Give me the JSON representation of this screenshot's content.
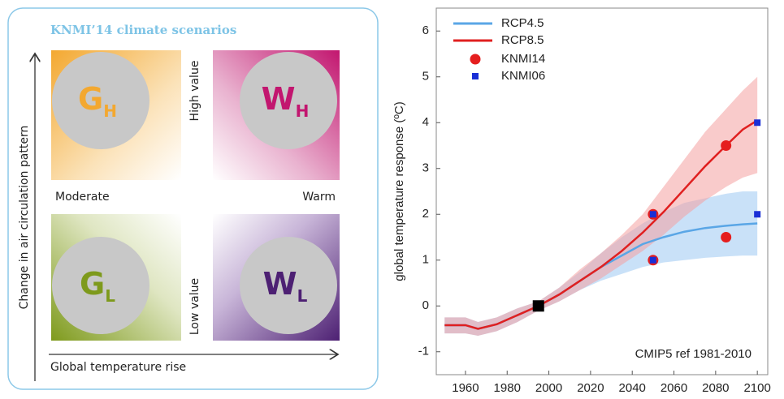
{
  "diagram": {
    "title": "KNMI’14 climate scenarios",
    "y_axis_label": "Change in air circulation pattern",
    "x_axis_label": "Global temperature rise",
    "labels": {
      "high": "High value",
      "low": "Low value",
      "moderate": "Moderate",
      "warm": "Warm"
    },
    "scenarios": [
      {
        "letter": "G",
        "subscript": "H"
      },
      {
        "letter": "W",
        "subscript": "H"
      },
      {
        "letter": "G",
        "subscript": "L"
      },
      {
        "letter": "W",
        "subscript": "L"
      }
    ]
  },
  "chart_data": {
    "type": "line",
    "y_label": "global temperature response (ºC)",
    "annotation": "CMIP5 ref 1981-2010",
    "xlim": [
      1946,
      2105
    ],
    "xticks": [
      1960,
      1980,
      2000,
      2020,
      2040,
      2060,
      2080,
      2100
    ],
    "ylim": [
      -1.5,
      6.5
    ],
    "yticks": [
      -1,
      0,
      1,
      2,
      3,
      4,
      5,
      6
    ],
    "x": [
      1950,
      1960,
      1966,
      1975,
      1985,
      1995,
      2005,
      2015,
      2025,
      2035,
      2045,
      2055,
      2065,
      2075,
      2085,
      2093,
      2100
    ],
    "series": [
      {
        "name": "RCP4.5",
        "color": "#5aa6e6",
        "band_color": "#9cc8f2",
        "values": [
          -0.42,
          -0.42,
          -0.5,
          -0.4,
          -0.2,
          0,
          0.25,
          0.55,
          0.85,
          1.1,
          1.35,
          1.5,
          1.62,
          1.7,
          1.75,
          1.78,
          1.8
        ],
        "lower": [
          -0.6,
          -0.6,
          -0.65,
          -0.55,
          -0.35,
          -0.1,
          0.1,
          0.35,
          0.55,
          0.7,
          0.85,
          0.95,
          1.0,
          1.05,
          1.08,
          1.1,
          1.1
        ],
        "upper": [
          -0.25,
          -0.25,
          -0.35,
          -0.25,
          -0.05,
          0.1,
          0.4,
          0.75,
          1.15,
          1.5,
          1.8,
          2.05,
          2.25,
          2.35,
          2.45,
          2.5,
          2.5
        ]
      },
      {
        "name": "RCP8.5",
        "color": "#e02020",
        "band_color": "#f4a0a0",
        "values": [
          -0.42,
          -0.42,
          -0.5,
          -0.4,
          -0.2,
          0,
          0.25,
          0.55,
          0.85,
          1.2,
          1.6,
          2.05,
          2.55,
          3.05,
          3.5,
          3.85,
          4.05
        ],
        "lower": [
          -0.6,
          -0.6,
          -0.65,
          -0.55,
          -0.35,
          -0.1,
          0.1,
          0.35,
          0.6,
          0.9,
          1.2,
          1.55,
          1.95,
          2.3,
          2.6,
          2.8,
          2.9
        ],
        "upper": [
          -0.25,
          -0.25,
          -0.35,
          -0.25,
          -0.05,
          0.1,
          0.4,
          0.8,
          1.15,
          1.55,
          2.0,
          2.6,
          3.2,
          3.8,
          4.3,
          4.7,
          5.0
        ]
      }
    ],
    "scatter_series": [
      {
        "name": "KNMI14",
        "color": "#e51e1e",
        "marker": "circle",
        "x": [
          2050,
          2050,
          2085,
          2085
        ],
        "y": [
          2,
          1,
          3.5,
          1.5
        ]
      },
      {
        "name": "KNMI06",
        "color": "#1a2fd6",
        "marker": "square",
        "x": [
          2050,
          2050,
          2100,
          2100
        ],
        "y": [
          2,
          1,
          4,
          2
        ]
      }
    ],
    "reference_point": {
      "x": 1995,
      "y": 0,
      "color": "#000000"
    }
  }
}
